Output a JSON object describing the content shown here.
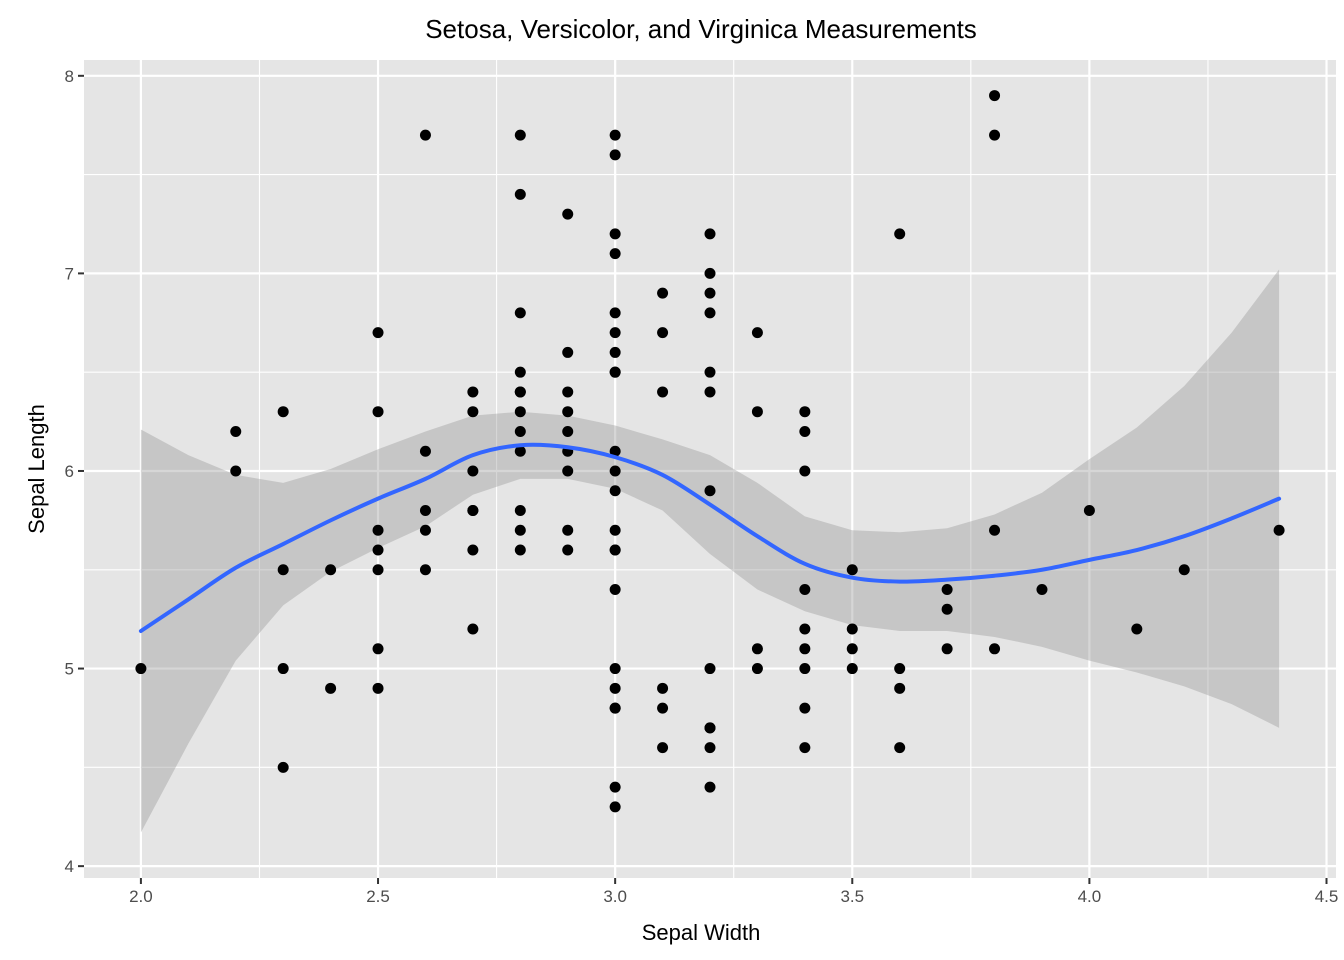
{
  "chart_data": {
    "type": "scatter",
    "title": "Setosa, Versicolor, and Virginica Measurements",
    "xlabel": "Sepal Width",
    "ylabel": "Sepal Length",
    "xlim": [
      1.88,
      4.52
    ],
    "ylim": [
      3.94,
      8.08
    ],
    "x_ticks": [
      2.0,
      2.5,
      3.0,
      3.5,
      4.0,
      4.5
    ],
    "x_tick_labels": [
      "2.0",
      "2.5",
      "3.0",
      "3.5",
      "4.0",
      "4.5"
    ],
    "y_ticks": [
      4,
      5,
      6,
      7,
      8
    ],
    "y_tick_labels": [
      "4",
      "5",
      "6",
      "7",
      "8"
    ],
    "grid": true,
    "legend": "none",
    "colors": {
      "panel_background": "#e5e5e5",
      "grid": "#ffffff",
      "points": "#000000",
      "smooth_line": "#3366ff",
      "confidence_band": "#999999"
    },
    "points": {
      "x": [
        2.0,
        2.2,
        2.2,
        2.3,
        2.3,
        2.3,
        2.3,
        2.4,
        2.4,
        2.5,
        2.5,
        2.5,
        2.5,
        2.5,
        2.5,
        2.5,
        2.6,
        2.6,
        2.6,
        2.6,
        2.6,
        2.7,
        2.7,
        2.7,
        2.7,
        2.7,
        2.7,
        2.7,
        2.8,
        2.8,
        2.8,
        2.8,
        2.8,
        2.8,
        2.8,
        2.8,
        2.8,
        2.8,
        2.8,
        2.8,
        2.9,
        2.9,
        2.9,
        2.9,
        2.9,
        2.9,
        2.9,
        2.9,
        2.9,
        3.0,
        3.0,
        3.0,
        3.0,
        3.0,
        3.0,
        3.0,
        3.0,
        3.0,
        3.0,
        3.0,
        3.0,
        3.0,
        3.0,
        3.0,
        3.0,
        3.0,
        3.0,
        3.0,
        3.0,
        3.0,
        3.0,
        3.1,
        3.1,
        3.1,
        3.1,
        3.1,
        3.1,
        3.2,
        3.2,
        3.2,
        3.2,
        3.2,
        3.2,
        3.2,
        3.2,
        3.2,
        3.2,
        3.2,
        3.2,
        3.3,
        3.3,
        3.3,
        3.3,
        3.4,
        3.4,
        3.4,
        3.4,
        3.4,
        3.4,
        3.4,
        3.4,
        3.4,
        3.5,
        3.5,
        3.5,
        3.5,
        3.6,
        3.6,
        3.6,
        3.6,
        3.7,
        3.7,
        3.7,
        3.8,
        3.8,
        3.8,
        3.8,
        3.9,
        4.0,
        4.1,
        4.2,
        4.4
      ],
      "y": [
        5.0,
        6.2,
        6.0,
        6.3,
        5.5,
        5.0,
        4.5,
        5.5,
        4.9,
        6.7,
        6.3,
        5.7,
        5.6,
        5.5,
        5.1,
        4.9,
        7.7,
        6.1,
        5.8,
        5.7,
        5.5,
        6.4,
        6.3,
        6.0,
        5.8,
        5.8,
        5.6,
        5.2,
        7.7,
        7.4,
        6.8,
        6.5,
        6.4,
        6.4,
        6.3,
        6.2,
        6.1,
        5.8,
        5.7,
        5.6,
        7.3,
        6.6,
        6.4,
        6.3,
        6.2,
        6.1,
        6.0,
        5.7,
        5.6,
        7.7,
        7.6,
        7.2,
        7.1,
        6.8,
        6.7,
        6.6,
        6.5,
        6.5,
        6.1,
        6.0,
        5.9,
        5.7,
        5.6,
        5.6,
        5.4,
        5.0,
        4.9,
        4.8,
        4.8,
        4.4,
        4.3,
        6.9,
        6.7,
        6.4,
        4.9,
        4.8,
        4.6,
        7.2,
        7.0,
        6.9,
        6.8,
        6.5,
        6.4,
        5.9,
        5.0,
        4.7,
        4.7,
        4.6,
        4.4,
        6.7,
        6.3,
        5.1,
        5.0,
        6.3,
        6.2,
        6.0,
        5.4,
        5.2,
        5.1,
        5.0,
        4.8,
        4.6,
        5.5,
        5.2,
        5.1,
        5.0,
        7.2,
        5.0,
        4.9,
        4.6,
        5.4,
        5.3,
        5.1,
        7.9,
        7.7,
        5.7,
        5.1,
        5.4,
        5.8,
        5.2,
        5.5,
        5.7
      ]
    },
    "smooth": {
      "method": "loess",
      "x": [
        2.0,
        2.1,
        2.2,
        2.3,
        2.4,
        2.5,
        2.6,
        2.7,
        2.8,
        2.9,
        3.0,
        3.1,
        3.2,
        3.3,
        3.4,
        3.5,
        3.6,
        3.7,
        3.8,
        3.9,
        4.0,
        4.1,
        4.2,
        4.3,
        4.4
      ],
      "y": [
        5.19,
        5.35,
        5.51,
        5.63,
        5.75,
        5.86,
        5.96,
        6.08,
        6.13,
        6.12,
        6.07,
        5.98,
        5.83,
        5.67,
        5.53,
        5.46,
        5.44,
        5.45,
        5.47,
        5.5,
        5.55,
        5.6,
        5.67,
        5.76,
        5.86
      ],
      "ymin": [
        4.17,
        4.62,
        5.04,
        5.32,
        5.49,
        5.61,
        5.72,
        5.88,
        5.96,
        5.96,
        5.91,
        5.8,
        5.58,
        5.4,
        5.29,
        5.22,
        5.19,
        5.19,
        5.16,
        5.11,
        5.04,
        4.98,
        4.91,
        4.82,
        4.7
      ],
      "ymax": [
        6.21,
        6.08,
        5.98,
        5.94,
        6.01,
        6.11,
        6.2,
        6.28,
        6.3,
        6.28,
        6.23,
        6.16,
        6.08,
        5.94,
        5.77,
        5.7,
        5.69,
        5.71,
        5.78,
        5.89,
        6.06,
        6.22,
        6.43,
        6.7,
        7.02
      ]
    }
  }
}
